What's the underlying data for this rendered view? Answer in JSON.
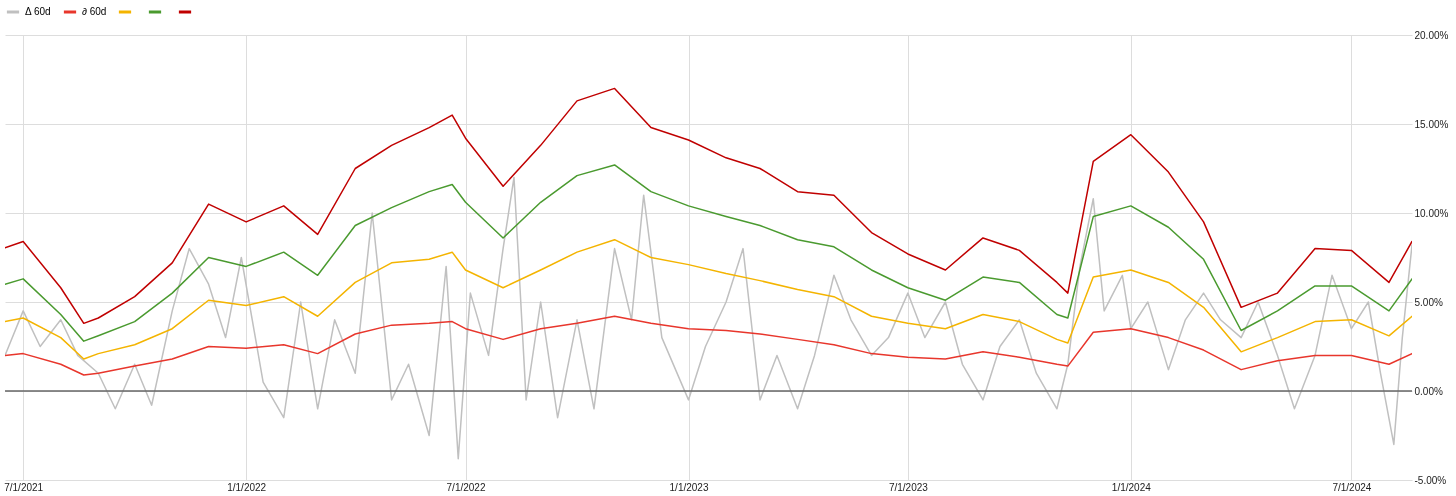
{
  "chart_data": {
    "type": "line",
    "xlim": [
      "2021-06-16",
      "2024-08-20"
    ],
    "xticks": [
      {
        "value": "2021-07-01",
        "label": "7/1/2021"
      },
      {
        "value": "2022-01-01",
        "label": "1/1/2022"
      },
      {
        "value": "2022-07-01",
        "label": "7/1/2022"
      },
      {
        "value": "2023-01-01",
        "label": "1/1/2023"
      },
      {
        "value": "2023-07-01",
        "label": "7/1/2023"
      },
      {
        "value": "2024-01-01",
        "label": "1/1/2024"
      },
      {
        "value": "2024-07-01",
        "label": "7/1/2024"
      }
    ],
    "ylim": [
      -5,
      20
    ],
    "yticks": [
      {
        "value": -5,
        "label": "-5.00%"
      },
      {
        "value": 0,
        "label": "0.00%"
      },
      {
        "value": 5,
        "label": "5.00%"
      },
      {
        "value": 10,
        "label": "10.00%"
      },
      {
        "value": 15,
        "label": "15.00%"
      },
      {
        "value": 20,
        "label": "20.00%"
      }
    ],
    "grid": true,
    "legend": "top",
    "marker": "none",
    "line_style": "solid",
    "ref_lines": [
      {
        "axis": "y",
        "value": 0,
        "color": "#666666"
      }
    ],
    "x": [
      "2021-06-16",
      "2021-07-01",
      "2021-08-01",
      "2021-08-20",
      "2021-09-01",
      "2021-10-01",
      "2021-11-01",
      "2021-12-01",
      "2022-01-01",
      "2022-02-01",
      "2022-03-01",
      "2022-04-01",
      "2022-05-01",
      "2022-06-01",
      "2022-06-20",
      "2022-07-01",
      "2022-08-01",
      "2022-09-01",
      "2022-10-01",
      "2022-11-01",
      "2022-12-01",
      "2023-01-01",
      "2023-02-01",
      "2023-03-01",
      "2023-04-01",
      "2023-05-01",
      "2023-06-01",
      "2023-07-01",
      "2023-08-01",
      "2023-09-01",
      "2023-10-01",
      "2023-11-01",
      "2023-11-10",
      "2023-12-01",
      "2024-01-01",
      "2024-02-01",
      "2024-03-01",
      "2024-04-01",
      "2024-05-01",
      "2024-06-01",
      "2024-07-01",
      "2024-08-01",
      "2024-08-20"
    ],
    "series": [
      {
        "name": "Δ 60d",
        "color": "#c0c0c0",
        "x": [
          "2021-06-16",
          "2021-07-01",
          "2021-07-15",
          "2021-08-01",
          "2021-08-15",
          "2021-09-01",
          "2021-09-15",
          "2021-10-01",
          "2021-10-15",
          "2021-11-01",
          "2021-11-15",
          "2021-12-01",
          "2021-12-15",
          "2021-12-28",
          "2022-01-15",
          "2022-02-01",
          "2022-02-15",
          "2022-03-01",
          "2022-03-15",
          "2022-04-01",
          "2022-04-15",
          "2022-05-01",
          "2022-05-15",
          "2022-06-01",
          "2022-06-15",
          "2022-06-25",
          "2022-07-05",
          "2022-07-20",
          "2022-08-01",
          "2022-08-10",
          "2022-08-20",
          "2022-09-01",
          "2022-09-15",
          "2022-10-01",
          "2022-10-15",
          "2022-11-01",
          "2022-11-15",
          "2022-11-25",
          "2022-12-10",
          "2023-01-01",
          "2023-01-15",
          "2023-02-01",
          "2023-02-15",
          "2023-03-01",
          "2023-03-15",
          "2023-04-01",
          "2023-04-15",
          "2023-05-01",
          "2023-05-15",
          "2023-06-01",
          "2023-06-15",
          "2023-07-01",
          "2023-07-15",
          "2023-08-01",
          "2023-08-15",
          "2023-09-01",
          "2023-09-15",
          "2023-10-01",
          "2023-10-15",
          "2023-11-01",
          "2023-11-10",
          "2023-11-20",
          "2023-12-01",
          "2023-12-10",
          "2023-12-25",
          "2024-01-01",
          "2024-01-15",
          "2024-02-01",
          "2024-02-15",
          "2024-03-01",
          "2024-03-15",
          "2024-04-01",
          "2024-04-15",
          "2024-05-01",
          "2024-05-15",
          "2024-06-01",
          "2024-06-15",
          "2024-07-01",
          "2024-07-15",
          "2024-07-25",
          "2024-08-05",
          "2024-08-12",
          "2024-08-20"
        ],
        "values": [
          2.0,
          4.5,
          2.5,
          4.0,
          2.0,
          1.0,
          -1.0,
          1.5,
          -0.8,
          4.5,
          8.0,
          6.0,
          3.0,
          7.5,
          0.5,
          -1.5,
          5.0,
          -1.0,
          4.0,
          1.0,
          10.0,
          -0.5,
          1.5,
          -2.5,
          7.0,
          -3.8,
          5.5,
          2.0,
          8.0,
          12.0,
          -0.5,
          5.0,
          -1.5,
          4.0,
          -1.0,
          8.0,
          4.0,
          11.0,
          3.0,
          -0.5,
          2.5,
          5.0,
          8.0,
          -0.5,
          2.0,
          -1.0,
          2.0,
          6.5,
          4.0,
          2.0,
          3.0,
          5.5,
          3.0,
          5.0,
          1.5,
          -0.5,
          2.5,
          4.0,
          1.0,
          -1.0,
          1.5,
          7.0,
          10.8,
          4.5,
          6.5,
          3.5,
          5.0,
          1.2,
          4.0,
          5.5,
          4.0,
          3.0,
          5.0,
          2.0,
          -1.0,
          2.0,
          6.5,
          3.5,
          5.0,
          1.0,
          -3.0,
          3.0,
          8.2
        ]
      },
      {
        "name": "∂ 60d",
        "color": "#e8362c",
        "values": [
          2.0,
          2.1,
          1.5,
          0.9,
          1.0,
          1.4,
          1.8,
          2.5,
          2.4,
          2.6,
          2.1,
          3.2,
          3.7,
          3.8,
          3.9,
          3.5,
          2.9,
          3.5,
          3.8,
          4.2,
          3.8,
          3.5,
          3.4,
          3.2,
          2.9,
          2.6,
          2.1,
          1.9,
          1.8,
          2.2,
          1.9,
          1.5,
          1.4,
          3.3,
          3.5,
          3.0,
          2.3,
          1.2,
          1.7,
          2.0,
          2.0,
          1.5,
          2.1
        ]
      },
      {
        "color": "#f4b400",
        "values": [
          3.9,
          4.1,
          3.0,
          1.8,
          2.1,
          2.6,
          3.5,
          5.1,
          4.8,
          5.3,
          4.2,
          6.1,
          7.2,
          7.4,
          7.8,
          6.8,
          5.8,
          6.8,
          7.8,
          8.5,
          7.5,
          7.1,
          6.6,
          6.2,
          5.7,
          5.3,
          4.2,
          3.8,
          3.5,
          4.3,
          3.9,
          2.9,
          2.7,
          6.4,
          6.8,
          6.1,
          4.7,
          2.2,
          3.0,
          3.9,
          4.0,
          3.1,
          4.2
        ]
      },
      {
        "color": "#4a9a2f",
        "values": [
          6.0,
          6.3,
          4.3,
          2.8,
          3.1,
          3.9,
          5.5,
          7.5,
          7.0,
          7.8,
          6.5,
          9.3,
          10.3,
          11.2,
          11.6,
          10.6,
          8.6,
          10.6,
          12.1,
          12.7,
          11.2,
          10.4,
          9.8,
          9.3,
          8.5,
          8.1,
          6.8,
          5.8,
          5.1,
          6.4,
          6.1,
          4.3,
          4.1,
          9.8,
          10.4,
          9.2,
          7.4,
          3.4,
          4.5,
          5.9,
          5.9,
          4.5,
          6.3
        ]
      },
      {
        "color": "#c00000",
        "values": [
          8.05,
          8.4,
          5.8,
          3.8,
          4.1,
          5.3,
          7.2,
          10.5,
          9.5,
          10.4,
          8.8,
          12.5,
          13.8,
          14.8,
          15.5,
          14.2,
          11.5,
          13.8,
          16.3,
          17.0,
          14.8,
          14.1,
          13.1,
          12.5,
          11.2,
          11.0,
          8.9,
          7.7,
          6.8,
          8.6,
          7.9,
          6.1,
          5.5,
          12.9,
          14.4,
          12.3,
          9.5,
          4.7,
          5.5,
          8.0,
          7.9,
          6.1,
          8.4
        ]
      }
    ]
  }
}
